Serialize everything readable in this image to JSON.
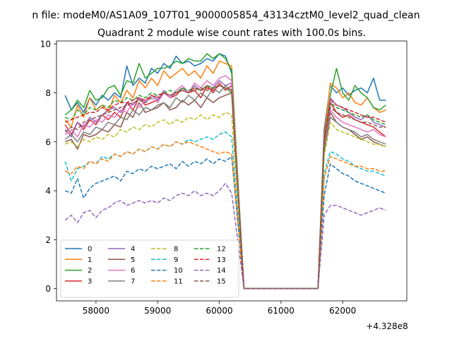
{
  "suptitle": "n file: modeM0/AS1A09_107T01_9000005854_43134cztM0_level2_quad_clean",
  "chart_data": {
    "type": "line",
    "title": "Quadrant 2 module wise count rates with 100.0s bins.",
    "xlabel": "",
    "ylabel": "",
    "offset_text": "+4.328e8",
    "x_offset": 432800000,
    "xlim": [
      57360,
      63040
    ],
    "ylim": [
      -0.5,
      10.12
    ],
    "xticks": [
      58000,
      59000,
      60000,
      61000,
      62000
    ],
    "xtick_labels": [
      "58000",
      "59000",
      "60000",
      "61000",
      "62000"
    ],
    "yticks": [
      0,
      2,
      4,
      6,
      8,
      10
    ],
    "ytick_labels": [
      "0",
      "2",
      "4",
      "6",
      "8",
      "10"
    ],
    "grid": false,
    "legend": {
      "placement": "lower-left",
      "columns": 4
    },
    "x": {
      "segment1": {
        "start": 57500,
        "step": 100,
        "count": 28
      },
      "segment2": {
        "start": 61700,
        "step": 100,
        "count": 11
      },
      "drop_zero_start": 60400,
      "drop_zero_end": 61600
    },
    "series": [
      {
        "name": "0",
        "color": "#1f77b4",
        "dash": "solid",
        "seg1": [
          7.9,
          7.3,
          7.6,
          7.2,
          7.8,
          7.5,
          7.9,
          7.7,
          8.0,
          7.8,
          9.1,
          8.3,
          8.6,
          8.4,
          9.0,
          8.8,
          9.2,
          9.0,
          9.5,
          9.2,
          9.3,
          9.1,
          9.2,
          9.4,
          9.3,
          9.6,
          9.5,
          8.8
        ],
        "seg2": [
          6.5,
          8.3,
          8.0,
          8.2,
          7.9,
          8.1,
          8.2,
          8.0,
          8.6,
          7.7,
          7.7
        ]
      },
      {
        "name": "1",
        "color": "#ff7f0e",
        "dash": "solid",
        "seg1": [
          6.9,
          6.6,
          7.5,
          7.0,
          7.8,
          7.3,
          7.5,
          7.2,
          7.9,
          7.6,
          8.1,
          7.8,
          8.5,
          8.2,
          8.6,
          8.3,
          8.9,
          8.6,
          8.8,
          9.0,
          8.7,
          8.9,
          8.6,
          9.1,
          8.8,
          9.3,
          9.2,
          9.1
        ],
        "seg2": [
          6.2,
          8.4,
          8.2,
          7.8,
          8.0,
          7.6,
          7.5,
          7.8,
          7.4,
          7.2,
          7.3
        ]
      },
      {
        "name": "2",
        "color": "#2ca02c",
        "dash": "solid",
        "seg1": [
          7.1,
          7.3,
          7.7,
          7.4,
          8.1,
          7.7,
          7.8,
          8.2,
          8.3,
          7.9,
          8.5,
          8.4,
          9.2,
          8.6,
          8.8,
          9.0,
          9.0,
          9.1,
          9.3,
          9.2,
          9.4,
          9.3,
          9.3,
          9.6,
          9.4,
          9.6,
          9.4,
          8.9
        ],
        "seg2": [
          6.0,
          7.9,
          9.0,
          8.0,
          7.7,
          8.3,
          8.0,
          7.8,
          7.4,
          7.3,
          7.5
        ]
      },
      {
        "name": "3",
        "color": "#d62728",
        "dash": "solid",
        "seg1": [
          6.7,
          6.3,
          6.8,
          6.5,
          6.9,
          6.7,
          7.1,
          6.9,
          7.2,
          7.0,
          7.6,
          7.3,
          7.8,
          7.5,
          7.6,
          7.7,
          8.0,
          7.8,
          7.9,
          8.2,
          8.0,
          8.1,
          7.8,
          8.3,
          8.0,
          8.4,
          8.1,
          8.3
        ],
        "seg2": [
          5.9,
          7.6,
          7.2,
          7.0,
          7.1,
          6.9,
          6.8,
          6.7,
          6.6,
          6.4,
          6.2
        ]
      },
      {
        "name": "4",
        "color": "#9467bd",
        "dash": "solid",
        "seg1": [
          6.5,
          6.2,
          6.8,
          6.6,
          7.0,
          6.8,
          7.1,
          7.3,
          7.4,
          7.2,
          7.6,
          7.5,
          7.8,
          7.6,
          7.9,
          7.7,
          8.1,
          7.8,
          8.0,
          8.2,
          8.0,
          8.3,
          8.1,
          8.3,
          8.2,
          8.5,
          8.3,
          8.4
        ],
        "seg2": [
          5.8,
          7.8,
          7.5,
          7.4,
          7.2,
          7.0,
          6.9,
          7.1,
          6.8,
          6.7,
          6.6
        ]
      },
      {
        "name": "5",
        "color": "#8c564b",
        "dash": "solid",
        "seg1": [
          6.0,
          6.1,
          5.7,
          6.3,
          6.2,
          6.3,
          6.5,
          6.4,
          6.7,
          6.6,
          7.2,
          7.0,
          7.6,
          7.2,
          7.3,
          7.4,
          7.6,
          7.3,
          7.4,
          7.7,
          7.5,
          7.7,
          7.4,
          7.8,
          7.6,
          7.8,
          7.9,
          8.0
        ],
        "seg2": [
          5.7,
          7.2,
          6.8,
          6.6,
          6.5,
          6.3,
          6.1,
          6.2,
          6.0,
          5.9,
          5.8
        ]
      },
      {
        "name": "6",
        "color": "#e377c2",
        "dash": "solid",
        "seg1": [
          6.3,
          6.5,
          6.2,
          6.7,
          6.6,
          6.9,
          6.8,
          7.1,
          7.0,
          7.3,
          7.2,
          7.6,
          7.4,
          7.7,
          7.8,
          7.6,
          8.0,
          7.8,
          8.1,
          8.3,
          8.0,
          8.4,
          8.2,
          8.5,
          8.3,
          8.6,
          8.7,
          8.5
        ],
        "seg2": [
          5.9,
          7.3,
          7.0,
          6.8,
          6.7,
          6.6,
          6.5,
          6.4,
          6.5,
          6.3,
          6.2
        ]
      },
      {
        "name": "7",
        "color": "#7f7f7f",
        "dash": "solid",
        "seg1": [
          6.1,
          6.3,
          6.0,
          6.4,
          6.3,
          6.6,
          6.5,
          6.8,
          6.7,
          7.0,
          6.9,
          7.3,
          7.1,
          7.4,
          7.3,
          7.5,
          7.6,
          7.4,
          7.8,
          7.6,
          7.9,
          7.7,
          8.0,
          7.8,
          8.2,
          8.0,
          8.3,
          8.1
        ],
        "seg2": [
          5.6,
          7.0,
          6.8,
          6.6,
          6.5,
          6.4,
          6.2,
          6.3,
          6.1,
          6.0,
          5.9
        ]
      },
      {
        "name": "8",
        "color": "#bcbd22",
        "dash": "dashed",
        "seg1": [
          5.9,
          6.0,
          5.8,
          6.1,
          6.0,
          6.2,
          6.1,
          6.3,
          6.2,
          6.5,
          6.4,
          6.6,
          6.5,
          6.7,
          6.6,
          6.8,
          6.9,
          6.7,
          6.9,
          6.8,
          7.0,
          6.9,
          7.1,
          6.9,
          7.1,
          7.0,
          7.2,
          7.1
        ],
        "seg2": [
          5.4,
          6.8,
          6.5,
          6.4,
          6.3,
          6.2,
          6.1,
          6.0,
          5.9,
          5.9,
          5.8
        ]
      },
      {
        "name": "9",
        "color": "#17becf",
        "dash": "dashed",
        "seg1": [
          5.2,
          4.4,
          4.9,
          5.0,
          5.2,
          5.1,
          5.4,
          5.3,
          5.5,
          5.4,
          5.6,
          5.5,
          5.7,
          5.6,
          5.8,
          5.7,
          5.9,
          5.8,
          6.0,
          5.9,
          6.1,
          6.0,
          6.1,
          6.2,
          6.1,
          6.3,
          6.4,
          6.2
        ],
        "seg2": [
          4.7,
          5.6,
          5.5,
          5.3,
          5.2,
          5.0,
          4.9,
          4.8,
          4.8,
          4.7,
          4.6
        ]
      },
      {
        "name": "10",
        "color": "#1f77b4",
        "dash": "dashed",
        "seg1": [
          4.0,
          3.9,
          4.5,
          3.7,
          4.1,
          4.3,
          4.4,
          4.5,
          4.6,
          4.4,
          4.8,
          4.7,
          4.9,
          4.8,
          5.0,
          4.9,
          5.0,
          5.1,
          4.9,
          5.2,
          5.0,
          5.2,
          5.1,
          5.3,
          5.1,
          5.3,
          5.2,
          5.4
        ],
        "seg2": [
          3.8,
          5.1,
          4.9,
          4.7,
          4.6,
          4.4,
          4.3,
          4.2,
          4.1,
          4.0,
          3.9
        ]
      },
      {
        "name": "11",
        "color": "#ff7f0e",
        "dash": "dashed",
        "seg1": [
          4.8,
          4.7,
          5.0,
          4.9,
          5.2,
          5.1,
          5.3,
          5.2,
          5.5,
          5.4,
          5.6,
          5.5,
          5.7,
          5.6,
          5.8,
          5.7,
          5.9,
          5.8,
          6.0,
          5.9,
          6.0,
          5.9,
          5.8,
          5.7,
          5.6,
          5.5,
          5.6,
          5.5
        ],
        "seg2": [
          4.5,
          5.4,
          5.3,
          5.2,
          5.1,
          5.0,
          5.0,
          4.9,
          4.9,
          4.8,
          4.8
        ]
      },
      {
        "name": "12",
        "color": "#2ca02c",
        "dash": "dashed",
        "seg1": [
          7.0,
          6.9,
          7.3,
          7.1,
          7.4,
          7.3,
          7.5,
          7.4,
          7.7,
          7.6,
          7.8,
          7.7,
          7.9,
          7.8,
          8.0,
          7.9,
          8.0,
          8.1,
          8.0,
          8.2,
          8.1,
          8.2,
          8.1,
          8.3,
          8.2,
          8.3,
          8.2,
          8.0
        ],
        "seg2": [
          6.0,
          7.6,
          7.4,
          7.3,
          7.2,
          7.1,
          7.0,
          7.1,
          6.9,
          6.8,
          6.7
        ]
      },
      {
        "name": "13",
        "color": "#d62728",
        "dash": "dashed",
        "seg1": [
          6.8,
          6.9,
          7.0,
          7.1,
          7.2,
          7.2,
          7.4,
          7.3,
          7.5,
          7.6,
          7.6,
          7.7,
          7.8,
          7.7,
          7.9,
          7.8,
          8.0,
          7.9,
          8.0,
          8.1,
          8.0,
          8.2,
          8.1,
          8.2,
          8.1,
          8.3,
          8.2,
          8.1
        ],
        "seg2": [
          6.1,
          7.7,
          7.5,
          7.4,
          7.3,
          7.2,
          7.1,
          7.0,
          7.0,
          6.9,
          6.8
        ]
      },
      {
        "name": "14",
        "color": "#9467bd",
        "dash": "dashed",
        "seg1": [
          2.8,
          3.0,
          2.7,
          3.1,
          3.2,
          2.9,
          3.2,
          3.3,
          3.5,
          3.6,
          3.4,
          3.5,
          3.6,
          3.5,
          3.6,
          3.5,
          3.7,
          3.6,
          3.8,
          3.9,
          3.8,
          4.0,
          3.8,
          3.9,
          3.8,
          4.0,
          4.3,
          3.9
        ],
        "seg2": [
          3.0,
          3.4,
          3.4,
          3.3,
          3.2,
          3.1,
          3.0,
          3.1,
          3.2,
          3.3,
          3.2
        ]
      },
      {
        "name": "15",
        "color": "#8c564b",
        "dash": "dashed",
        "seg1": [
          6.4,
          6.6,
          6.5,
          6.8,
          6.9,
          7.0,
          7.1,
          7.2,
          7.3,
          7.4,
          7.5,
          7.6,
          7.7,
          7.6,
          7.8,
          7.9,
          8.0,
          7.9,
          8.0,
          8.1,
          8.0,
          8.1,
          8.2,
          8.1,
          8.2,
          8.3,
          8.2,
          8.1
        ],
        "seg2": [
          6.0,
          7.4,
          7.2,
          7.1,
          7.0,
          6.9,
          6.8,
          6.8,
          6.7,
          6.6,
          6.6
        ]
      }
    ]
  }
}
